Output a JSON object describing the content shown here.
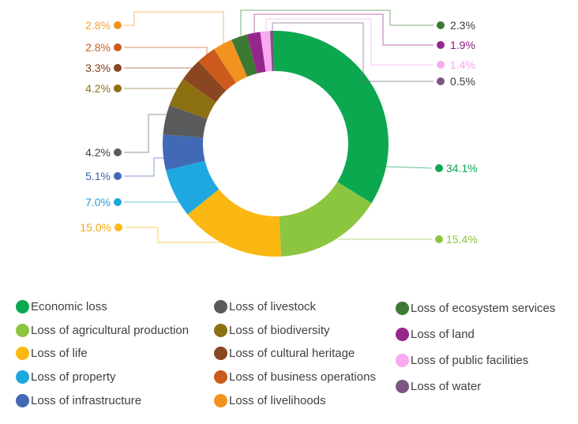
{
  "chart_data": {
    "type": "pie",
    "subtype": "donut",
    "title": "",
    "unit": "%",
    "legend_position": "bottom",
    "clockwise": true,
    "start_angle_deg": -1,
    "slices": [
      {
        "id": "economic-loss",
        "label": "Economic loss",
        "value": 34.1,
        "pct_label": "34.1%",
        "color": "#0CA84F",
        "label_color": "#0CA84F",
        "callout_side": "right"
      },
      {
        "id": "loss-of-agricultural-production",
        "label": "Loss of agricultural production",
        "value": 15.4,
        "pct_label": "15.4%",
        "color": "#8CC540",
        "label_color": "#8CC540",
        "callout_side": "right"
      },
      {
        "id": "loss-of-life",
        "label": "Loss of life",
        "value": 15.0,
        "pct_label": "15.0%",
        "color": "#FBB812",
        "label_color": "#F5A90F",
        "callout_side": "left"
      },
      {
        "id": "loss-of-property",
        "label": "Loss of property",
        "value": 7.0,
        "pct_label": "7.0%",
        "color": "#1FA8E0",
        "label_color": "#1F9CD9",
        "callout_side": "left"
      },
      {
        "id": "loss-of-infrastructure",
        "label": "Loss of infrastructure",
        "value": 5.1,
        "pct_label": "5.1%",
        "color": "#4269B5",
        "label_color": "#4062AE",
        "callout_side": "left"
      },
      {
        "id": "loss-of-livestock",
        "label": "Loss of livestock",
        "value": 4.2,
        "pct_label": "4.2%",
        "color": "#595A5C",
        "label_color": "#404040",
        "callout_side": "left"
      },
      {
        "id": "loss-of-biodiversity",
        "label": "Loss of biodiversity",
        "value": 4.2,
        "pct_label": "4.2%",
        "color": "#8C7012",
        "label_color": "#8C7012",
        "callout_side": "left"
      },
      {
        "id": "loss-of-cultural-heritage",
        "label": "Loss of cultural heritage",
        "value": 3.3,
        "pct_label": "3.3%",
        "color": "#8A4620",
        "label_color": "#7C3D12",
        "callout_side": "left"
      },
      {
        "id": "loss-of-business-operations",
        "label": "Loss of business operations",
        "value": 2.8,
        "pct_label": "2.8%",
        "color": "#CC5A1C",
        "label_color": "#C55F20",
        "callout_side": "left"
      },
      {
        "id": "loss-of-livelihoods",
        "label": "Loss of livelihoods",
        "value": 2.8,
        "pct_label": "2.8%",
        "color": "#F2931F",
        "label_color": "#F6A434",
        "callout_side": "left"
      },
      {
        "id": "loss-of-ecosystem-services",
        "label": "Loss of ecosystem services",
        "value": 2.3,
        "pct_label": "2.3%",
        "color": "#3C7A34",
        "label_color": "#3C3C3C",
        "callout_side": "right"
      },
      {
        "id": "loss-of-land",
        "label": "Loss of land",
        "value": 1.9,
        "pct_label": "1.9%",
        "color": "#95278C",
        "label_color": "#8B1A7E",
        "callout_side": "right"
      },
      {
        "id": "loss-of-public-facilities",
        "label": "Loss of public facilities",
        "value": 1.4,
        "pct_label": "1.4%",
        "color": "#F8A9F1",
        "label_color": "#F4A5EE",
        "callout_side": "right"
      },
      {
        "id": "loss-of-water",
        "label": "Loss of water",
        "value": 0.5,
        "pct_label": "0.5%",
        "color": "#7B5782",
        "label_color": "#3C3C3C",
        "callout_side": "right"
      }
    ],
    "legend_columns": [
      [
        "economic-loss",
        "loss-of-agricultural-production",
        "loss-of-life",
        "loss-of-property",
        "loss-of-infrastructure"
      ],
      [
        "loss-of-livestock",
        "loss-of-biodiversity",
        "loss-of-cultural-heritage",
        "loss-of-business-operations",
        "loss-of-livelihoods"
      ],
      [
        "loss-of-ecosystem-services",
        "loss-of-land",
        "loss-of-public-facilities",
        "loss-of-water"
      ]
    ]
  }
}
